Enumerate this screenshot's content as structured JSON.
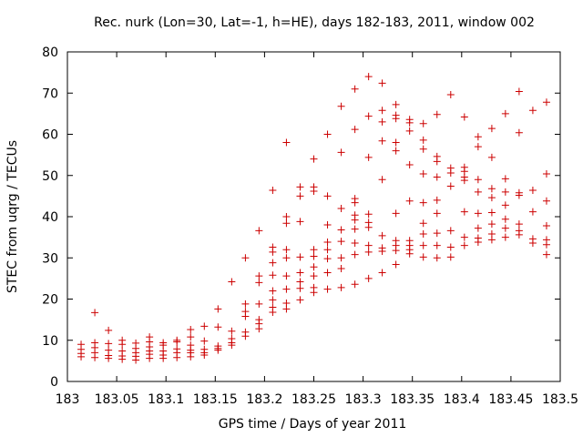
{
  "chart_data": {
    "type": "scatter",
    "title": "Rec. nurk (Lon=30, Lat=-1, h=HE), days 182-183, 2011, window 002",
    "xlabel": "GPS time / Days of year 2011",
    "ylabel": "STEC from uqrg / TECUs",
    "xlim": [
      183,
      183.5
    ],
    "ylim": [
      0,
      80
    ],
    "x_ticks": [
      183,
      183.05,
      183.1,
      183.15,
      183.2,
      183.25,
      183.3,
      183.35,
      183.4,
      183.45,
      183.5
    ],
    "x_tick_labels": [
      "183",
      "183.05",
      "183.1",
      "183.15",
      "183.2",
      "183.25",
      "183.3",
      "183.35",
      "183.4",
      "183.45",
      "183.5"
    ],
    "y_ticks": [
      0,
      10,
      20,
      30,
      40,
      50,
      60,
      70,
      80
    ],
    "y_tick_labels": [
      "0",
      "10",
      "20",
      "30",
      "40",
      "50",
      "60",
      "70",
      "80"
    ],
    "grid": false,
    "marker": "plus",
    "marker_color": "#cc0000",
    "points": [
      [
        183.0139,
        6.0
      ],
      [
        183.0139,
        6.8
      ],
      [
        183.0139,
        7.8
      ],
      [
        183.0139,
        9.0
      ],
      [
        183.0278,
        5.8
      ],
      [
        183.0278,
        7.0
      ],
      [
        183.0278,
        8.2
      ],
      [
        183.0278,
        9.4
      ],
      [
        183.0278,
        16.7
      ],
      [
        183.0417,
        5.6
      ],
      [
        183.0417,
        6.3
      ],
      [
        183.0417,
        7.6
      ],
      [
        183.0417,
        9.2
      ],
      [
        183.0417,
        12.4
      ],
      [
        183.0556,
        5.4
      ],
      [
        183.0556,
        6.2
      ],
      [
        183.0556,
        7.4
      ],
      [
        183.0556,
        9.0
      ],
      [
        183.0556,
        10.0
      ],
      [
        183.0694,
        5.2
      ],
      [
        183.0694,
        6.1
      ],
      [
        183.0694,
        7.0
      ],
      [
        183.0694,
        8.0
      ],
      [
        183.0694,
        9.3
      ],
      [
        183.0833,
        5.6
      ],
      [
        183.0833,
        6.6
      ],
      [
        183.0833,
        7.4
      ],
      [
        183.0833,
        8.4
      ],
      [
        183.0833,
        9.6
      ],
      [
        183.0833,
        10.8
      ],
      [
        183.0972,
        5.6
      ],
      [
        183.0972,
        6.4
      ],
      [
        183.0972,
        7.4
      ],
      [
        183.0972,
        8.8
      ],
      [
        183.0972,
        9.4
      ],
      [
        183.1111,
        5.8
      ],
      [
        183.1111,
        7.0
      ],
      [
        183.1111,
        7.9
      ],
      [
        183.1111,
        9.6
      ],
      [
        183.1111,
        10.0
      ],
      [
        183.125,
        6.0
      ],
      [
        183.125,
        7.0
      ],
      [
        183.125,
        7.6
      ],
      [
        183.125,
        8.8
      ],
      [
        183.125,
        10.8
      ],
      [
        183.125,
        12.6
      ],
      [
        183.1389,
        6.4
      ],
      [
        183.1389,
        7.0
      ],
      [
        183.1389,
        7.8
      ],
      [
        183.1389,
        9.8
      ],
      [
        183.1389,
        13.4
      ],
      [
        183.1528,
        7.6
      ],
      [
        183.1528,
        8.0
      ],
      [
        183.1528,
        8.6
      ],
      [
        183.1528,
        13.2
      ],
      [
        183.1528,
        17.6
      ],
      [
        183.1667,
        8.8
      ],
      [
        183.1667,
        9.4
      ],
      [
        183.1667,
        10.4
      ],
      [
        183.1667,
        12.2
      ],
      [
        183.1667,
        24.2
      ],
      [
        183.1806,
        11.0
      ],
      [
        183.1806,
        12.0
      ],
      [
        183.1806,
        15.8
      ],
      [
        183.1806,
        17.0
      ],
      [
        183.1806,
        18.8
      ],
      [
        183.1806,
        30.0
      ],
      [
        183.1944,
        12.8
      ],
      [
        183.1944,
        14.0
      ],
      [
        183.1944,
        15.0
      ],
      [
        183.1944,
        18.8
      ],
      [
        183.1944,
        24.0
      ],
      [
        183.1944,
        25.6
      ],
      [
        183.1944,
        36.6
      ],
      [
        183.2083,
        16.8
      ],
      [
        183.2083,
        18.0
      ],
      [
        183.2083,
        19.8
      ],
      [
        183.2083,
        22.0
      ],
      [
        183.2083,
        25.8
      ],
      [
        183.2083,
        28.8
      ],
      [
        183.2083,
        31.4
      ],
      [
        183.2083,
        32.6
      ],
      [
        183.2083,
        46.4
      ],
      [
        183.2222,
        17.6
      ],
      [
        183.2222,
        19.0
      ],
      [
        183.2222,
        22.4
      ],
      [
        183.2222,
        25.6
      ],
      [
        183.2222,
        30.0
      ],
      [
        183.2222,
        32.0
      ],
      [
        183.2222,
        38.4
      ],
      [
        183.2222,
        40.0
      ],
      [
        183.2222,
        58.0
      ],
      [
        183.2361,
        19.8
      ],
      [
        183.2361,
        22.6
      ],
      [
        183.2361,
        24.2
      ],
      [
        183.2361,
        26.4
      ],
      [
        183.2361,
        30.2
      ],
      [
        183.2361,
        38.8
      ],
      [
        183.2361,
        45.0
      ],
      [
        183.2361,
        47.2
      ],
      [
        183.25,
        21.6
      ],
      [
        183.25,
        22.8
      ],
      [
        183.25,
        25.6
      ],
      [
        183.25,
        27.8
      ],
      [
        183.25,
        30.4
      ],
      [
        183.25,
        32.0
      ],
      [
        183.25,
        46.2
      ],
      [
        183.25,
        47.2
      ],
      [
        183.25,
        54.0
      ],
      [
        183.2639,
        22.4
      ],
      [
        183.2639,
        26.4
      ],
      [
        183.2639,
        29.8
      ],
      [
        183.2639,
        32.0
      ],
      [
        183.2639,
        33.8
      ],
      [
        183.2639,
        38.0
      ],
      [
        183.2639,
        45.0
      ],
      [
        183.2639,
        60.0
      ],
      [
        183.2778,
        22.8
      ],
      [
        183.2778,
        27.4
      ],
      [
        183.2778,
        30.0
      ],
      [
        183.2778,
        34.0
      ],
      [
        183.2778,
        36.8
      ],
      [
        183.2778,
        42.0
      ],
      [
        183.2778,
        55.6
      ],
      [
        183.2778,
        66.8
      ],
      [
        183.2917,
        23.6
      ],
      [
        183.2917,
        30.8
      ],
      [
        183.2917,
        33.6
      ],
      [
        183.2917,
        37.0
      ],
      [
        183.2917,
        39.2
      ],
      [
        183.2917,
        40.4
      ],
      [
        183.2917,
        43.4
      ],
      [
        183.2917,
        44.4
      ],
      [
        183.2917,
        61.2
      ],
      [
        183.2917,
        71.0
      ],
      [
        183.3056,
        25.0
      ],
      [
        183.3056,
        31.4
      ],
      [
        183.3056,
        33.0
      ],
      [
        183.3056,
        37.4
      ],
      [
        183.3056,
        38.6
      ],
      [
        183.3056,
        40.6
      ],
      [
        183.3056,
        54.4
      ],
      [
        183.3056,
        64.4
      ],
      [
        183.3056,
        74.0
      ],
      [
        183.3194,
        26.4
      ],
      [
        183.3194,
        31.6
      ],
      [
        183.3194,
        32.4
      ],
      [
        183.3194,
        35.4
      ],
      [
        183.3194,
        49.0
      ],
      [
        183.3194,
        58.4
      ],
      [
        183.3194,
        63.0
      ],
      [
        183.3194,
        65.8
      ],
      [
        183.3194,
        72.4
      ],
      [
        183.3333,
        28.4
      ],
      [
        183.3333,
        31.8
      ],
      [
        183.3333,
        33.0
      ],
      [
        183.3333,
        34.2
      ],
      [
        183.3333,
        40.8
      ],
      [
        183.3333,
        56.0
      ],
      [
        183.3333,
        58.0
      ],
      [
        183.3333,
        63.8
      ],
      [
        183.3333,
        64.6
      ],
      [
        183.3333,
        67.2
      ],
      [
        183.3472,
        31.0
      ],
      [
        183.3472,
        32.0
      ],
      [
        183.3472,
        33.0
      ],
      [
        183.3472,
        34.2
      ],
      [
        183.3472,
        43.8
      ],
      [
        183.3472,
        52.6
      ],
      [
        183.3472,
        60.8
      ],
      [
        183.3472,
        62.8
      ],
      [
        183.3472,
        63.6
      ],
      [
        183.3611,
        30.2
      ],
      [
        183.3611,
        33.0
      ],
      [
        183.3611,
        35.8
      ],
      [
        183.3611,
        38.4
      ],
      [
        183.3611,
        43.4
      ],
      [
        183.3611,
        50.4
      ],
      [
        183.3611,
        56.4
      ],
      [
        183.3611,
        58.6
      ],
      [
        183.3611,
        62.6
      ],
      [
        183.375,
        30.0
      ],
      [
        183.375,
        33.0
      ],
      [
        183.375,
        36.0
      ],
      [
        183.375,
        40.8
      ],
      [
        183.375,
        44.0
      ],
      [
        183.375,
        49.6
      ],
      [
        183.375,
        53.4
      ],
      [
        183.375,
        54.6
      ],
      [
        183.375,
        64.8
      ],
      [
        183.3889,
        30.2
      ],
      [
        183.3889,
        32.6
      ],
      [
        183.3889,
        36.6
      ],
      [
        183.3889,
        47.4
      ],
      [
        183.3889,
        50.6
      ],
      [
        183.3889,
        51.8
      ],
      [
        183.3889,
        69.6
      ],
      [
        183.4028,
        33.0
      ],
      [
        183.4028,
        35.0
      ],
      [
        183.4028,
        41.2
      ],
      [
        183.4028,
        48.8
      ],
      [
        183.4028,
        49.6
      ],
      [
        183.4028,
        51.0
      ],
      [
        183.4028,
        52.0
      ],
      [
        183.4028,
        64.2
      ],
      [
        183.4167,
        33.8
      ],
      [
        183.4167,
        34.8
      ],
      [
        183.4167,
        37.2
      ],
      [
        183.4167,
        40.8
      ],
      [
        183.4167,
        46.0
      ],
      [
        183.4167,
        49.0
      ],
      [
        183.4167,
        57.0
      ],
      [
        183.4167,
        59.4
      ],
      [
        183.4306,
        34.4
      ],
      [
        183.4306,
        35.8
      ],
      [
        183.4306,
        38.2
      ],
      [
        183.4306,
        41.0
      ],
      [
        183.4306,
        44.6
      ],
      [
        183.4306,
        46.8
      ],
      [
        183.4306,
        54.4
      ],
      [
        183.4306,
        61.4
      ],
      [
        183.4444,
        35.0
      ],
      [
        183.4444,
        37.2
      ],
      [
        183.4444,
        39.4
      ],
      [
        183.4444,
        42.8
      ],
      [
        183.4444,
        46.0
      ],
      [
        183.4444,
        49.2
      ],
      [
        183.4444,
        65.0
      ],
      [
        183.4583,
        35.6
      ],
      [
        183.4583,
        36.6
      ],
      [
        183.4583,
        38.2
      ],
      [
        183.4583,
        45.2
      ],
      [
        183.4583,
        45.8
      ],
      [
        183.4583,
        60.4
      ],
      [
        183.4583,
        70.4
      ],
      [
        183.4722,
        33.6
      ],
      [
        183.4722,
        34.6
      ],
      [
        183.4722,
        41.2
      ],
      [
        183.4722,
        46.4
      ],
      [
        183.4722,
        65.8
      ],
      [
        183.4861,
        30.8
      ],
      [
        183.4861,
        33.2
      ],
      [
        183.4861,
        34.4
      ],
      [
        183.4861,
        37.8
      ],
      [
        183.4861,
        43.8
      ],
      [
        183.4861,
        50.4
      ],
      [
        183.4861,
        67.8
      ]
    ]
  }
}
